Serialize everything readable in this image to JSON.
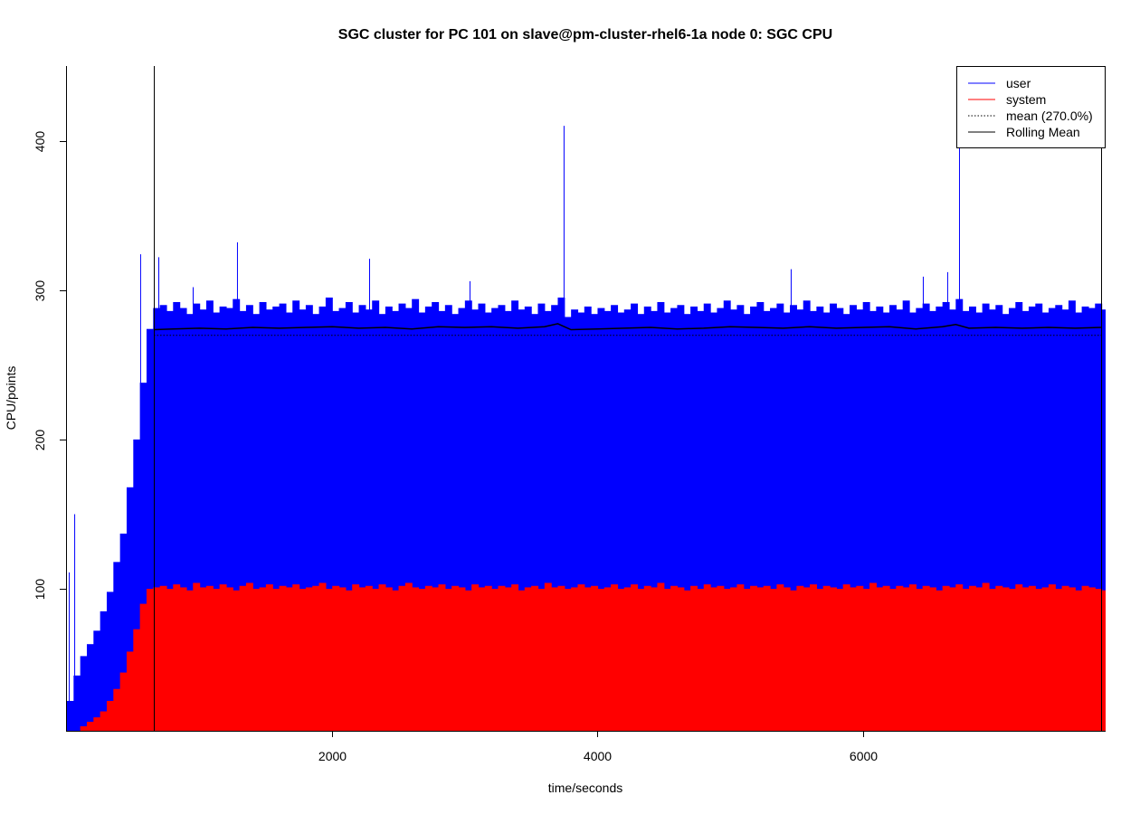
{
  "chart_data": {
    "type": "area",
    "title": "SGC cluster for PC 101 on slave@pm-cluster-rhel6-1a node 0: SGC CPU",
    "xlabel": "time/seconds",
    "ylabel": "CPU/points",
    "xlim": [
      0,
      7830
    ],
    "ylim": [
      5,
      450
    ],
    "xticks": [
      2000,
      4000,
      6000
    ],
    "yticks": [
      100,
      200,
      300,
      400
    ],
    "grid": false,
    "legend": "top-right",
    "x": [
      0,
      50,
      100,
      150,
      200,
      250,
      300,
      350,
      400,
      450,
      500,
      550,
      600,
      650,
      700,
      750,
      800,
      850,
      900,
      950,
      1000,
      1050,
      1100,
      1150,
      1200,
      1250,
      1300,
      1350,
      1400,
      1450,
      1500,
      1550,
      1600,
      1650,
      1700,
      1750,
      1800,
      1850,
      1900,
      1950,
      2000,
      2050,
      2100,
      2150,
      2200,
      2250,
      2300,
      2350,
      2400,
      2450,
      2500,
      2550,
      2600,
      2650,
      2700,
      2750,
      2800,
      2850,
      2900,
      2950,
      3000,
      3050,
      3100,
      3150,
      3200,
      3250,
      3300,
      3350,
      3400,
      3450,
      3500,
      3550,
      3600,
      3650,
      3700,
      3750,
      3800,
      3850,
      3900,
      3950,
      4000,
      4050,
      4100,
      4150,
      4200,
      4250,
      4300,
      4350,
      4400,
      4450,
      4500,
      4550,
      4600,
      4650,
      4700,
      4750,
      4800,
      4850,
      4900,
      4950,
      5000,
      5050,
      5100,
      5150,
      5200,
      5250,
      5300,
      5350,
      5400,
      5450,
      5500,
      5550,
      5600,
      5650,
      5700,
      5750,
      5800,
      5850,
      5900,
      5950,
      6000,
      6050,
      6100,
      6150,
      6200,
      6250,
      6300,
      6350,
      6400,
      6450,
      6500,
      6550,
      6600,
      6650,
      6700,
      6750,
      6800,
      6850,
      6900,
      6950,
      7000,
      7050,
      7100,
      7150,
      7200,
      7250,
      7300,
      7350,
      7400,
      7450,
      7500,
      7550,
      7600,
      7650,
      7700,
      7750,
      7800
    ],
    "series": [
      {
        "name": "user",
        "color": "#0000ff",
        "values": [
          25,
          42,
          55,
          63,
          72,
          85,
          98,
          118,
          137,
          168,
          200,
          238,
          274,
          288,
          290,
          286,
          292,
          288,
          284,
          291,
          287,
          293,
          285,
          289,
          288,
          294,
          286,
          290,
          284,
          292,
          287,
          289,
          291,
          285,
          293,
          287,
          290,
          284,
          289,
          295,
          286,
          288,
          292,
          285,
          290,
          287,
          293,
          284,
          289,
          286,
          291,
          288,
          294,
          285,
          289,
          292,
          286,
          290,
          284,
          288,
          293,
          287,
          291,
          285,
          288,
          290,
          286,
          293,
          287,
          289,
          284,
          291,
          286,
          290,
          295,
          282,
          287,
          285,
          289,
          284,
          288,
          286,
          290,
          285,
          287,
          291,
          284,
          289,
          286,
          292,
          285,
          288,
          290,
          284,
          289,
          286,
          291,
          285,
          288,
          293,
          287,
          290,
          284,
          289,
          292,
          286,
          288,
          291,
          285,
          290,
          287,
          293,
          286,
          289,
          285,
          291,
          288,
          284,
          290,
          287,
          292,
          286,
          289,
          285,
          290,
          287,
          293,
          285,
          288,
          291,
          286,
          289,
          292,
          287,
          294,
          286,
          289,
          285,
          291,
          287,
          290,
          284,
          288,
          292,
          286,
          289,
          291,
          285,
          288,
          290,
          287,
          293,
          285,
          289,
          288,
          291,
          287
        ],
        "peaks": [
          [
            14,
            111
          ],
          [
            55,
            150
          ],
          [
            552,
            324
          ],
          [
            689,
            322
          ],
          [
            948,
            302
          ],
          [
            1282,
            332
          ],
          [
            2278,
            321
          ],
          [
            3035,
            306
          ],
          [
            3744,
            410
          ],
          [
            5456,
            314
          ],
          [
            6452,
            309
          ],
          [
            6636,
            312
          ],
          [
            6725,
            450
          ]
        ]
      },
      {
        "name": "system",
        "color": "#ff0000",
        "values": [
          3,
          5,
          8,
          11,
          14,
          18,
          25,
          33,
          44,
          58,
          73,
          90,
          100,
          101,
          102,
          100,
          103,
          101,
          99,
          104,
          101,
          102,
          100,
          103,
          101,
          99,
          102,
          104,
          100,
          101,
          103,
          100,
          102,
          101,
          103,
          100,
          101,
          102,
          104,
          100,
          102,
          101,
          99,
          103,
          101,
          102,
          100,
          103,
          101,
          99,
          102,
          104,
          101,
          100,
          102,
          101,
          103,
          100,
          102,
          101,
          99,
          103,
          101,
          102,
          100,
          102,
          101,
          103,
          99,
          101,
          102,
          100,
          104,
          101,
          102,
          100,
          101,
          103,
          101,
          102,
          100,
          101,
          103,
          100,
          101,
          103,
          100,
          102,
          101,
          104,
          100,
          102,
          101,
          99,
          102,
          100,
          103,
          101,
          102,
          100,
          101,
          103,
          100,
          102,
          101,
          102,
          100,
          103,
          101,
          99,
          102,
          101,
          103,
          100,
          102,
          101,
          100,
          103,
          101,
          102,
          100,
          104,
          101,
          102,
          100,
          102,
          101,
          103,
          100,
          102,
          101,
          99,
          102,
          101,
          103,
          100,
          102,
          101,
          104,
          100,
          102,
          101,
          100,
          103,
          101,
          102,
          100,
          101,
          103,
          100,
          102,
          101,
          99,
          102,
          101,
          100,
          99
        ]
      }
    ],
    "mean": {
      "label": "mean (270.0%)",
      "value": 270,
      "style": "dotted",
      "color": "#000000"
    },
    "rolling_mean": {
      "name": "Rolling Mean",
      "color": "#000000",
      "x": [
        655,
        800,
        1000,
        1200,
        1400,
        1600,
        1800,
        2000,
        2200,
        2400,
        2600,
        2800,
        3000,
        3200,
        3400,
        3600,
        3700,
        3800,
        4000,
        4200,
        4400,
        4600,
        4800,
        5000,
        5200,
        5400,
        5600,
        5800,
        6000,
        6200,
        6400,
        6600,
        6700,
        6800,
        7000,
        7200,
        7400,
        7600,
        7796
      ],
      "values": [
        273.5,
        274.0,
        274.5,
        274.0,
        275.0,
        274.5,
        275.0,
        275.5,
        274.5,
        275.0,
        274.0,
        275.5,
        275.0,
        275.5,
        274.5,
        275.5,
        277.5,
        273.5,
        274.0,
        274.5,
        275.0,
        274.0,
        274.5,
        275.5,
        275.0,
        274.5,
        275.5,
        274.5,
        275.0,
        275.5,
        274.0,
        275.5,
        277.0,
        274.5,
        275.0,
        274.5,
        275.0,
        274.5,
        275.0
      ]
    },
    "vlines": [
      655,
      7796
    ]
  }
}
